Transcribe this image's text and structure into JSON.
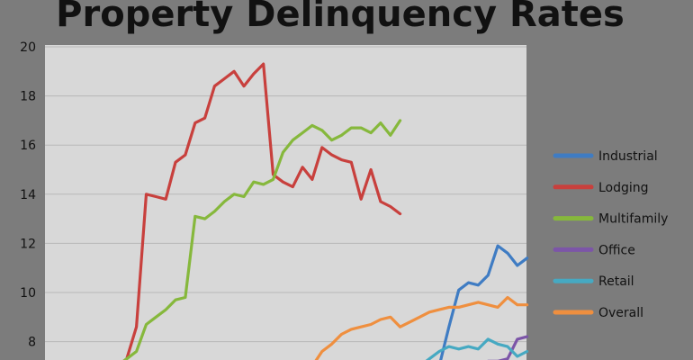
{
  "chart_data": {
    "type": "line",
    "title": "Property Delinquency Rates",
    "xlabel": "",
    "ylabel": "",
    "ylim": [
      7,
      20
    ],
    "yticks": [
      8,
      10,
      12,
      14,
      16,
      18,
      20
    ],
    "grid": true,
    "legend_position": "right",
    "x": [
      1,
      2,
      3,
      4,
      5,
      6,
      7,
      8,
      9,
      10,
      11,
      12,
      13,
      14,
      15,
      16,
      17,
      18,
      19,
      20,
      21,
      22,
      23,
      24,
      25,
      26,
      27,
      28,
      29,
      30,
      31,
      32,
      33,
      34,
      35,
      36,
      37,
      38,
      39,
      40,
      41,
      42,
      43,
      44,
      45,
      46,
      47,
      48,
      49,
      50
    ],
    "series": [
      {
        "name": "Industrial",
        "color": "#3f7cc3",
        "values": [
          null,
          null,
          null,
          null,
          null,
          null,
          null,
          null,
          null,
          null,
          null,
          null,
          null,
          null,
          null,
          null,
          null,
          null,
          null,
          null,
          null,
          null,
          null,
          null,
          null,
          null,
          null,
          null,
          null,
          null,
          null,
          null,
          null,
          null,
          null,
          null,
          null,
          null,
          null,
          null,
          7.0,
          8.6,
          10.1,
          10.4,
          10.3,
          10.7,
          11.9,
          11.6,
          11.1,
          11.4
        ]
      },
      {
        "name": "Lodging",
        "color": "#c8403d",
        "values": [
          7.0,
          7.0,
          7.0,
          7.0,
          7.0,
          7.0,
          7.0,
          7.0,
          7.3,
          8.6,
          14.0,
          13.9,
          13.8,
          15.3,
          15.6,
          16.9,
          17.1,
          18.4,
          18.7,
          19.0,
          18.4,
          18.9,
          19.3,
          14.8,
          14.5,
          14.3,
          15.1,
          14.6,
          15.9,
          15.6,
          15.4,
          15.3,
          13.8,
          15.0,
          13.7,
          13.5,
          13.2,
          null,
          null,
          null,
          null,
          null,
          null,
          null,
          null,
          null,
          null,
          null,
          null,
          null
        ]
      },
      {
        "name": "Multifamily",
        "color": "#86b83c",
        "values": [
          7.0,
          7.0,
          7.0,
          7.0,
          7.0,
          7.0,
          7.0,
          7.0,
          7.3,
          7.6,
          8.7,
          9.0,
          9.3,
          9.7,
          9.8,
          13.1,
          13.0,
          13.3,
          13.7,
          14.0,
          13.9,
          14.5,
          14.4,
          14.6,
          15.7,
          16.2,
          16.5,
          16.8,
          16.6,
          16.2,
          16.4,
          16.7,
          16.7,
          16.5,
          16.9,
          16.4,
          17.0,
          null,
          null,
          null,
          null,
          null,
          null,
          null,
          null,
          null,
          null,
          null,
          null,
          null
        ]
      },
      {
        "name": "Office",
        "color": "#7c55a8",
        "values": [
          null,
          null,
          null,
          null,
          null,
          null,
          null,
          null,
          null,
          null,
          null,
          null,
          null,
          null,
          null,
          null,
          null,
          null,
          null,
          null,
          null,
          null,
          null,
          null,
          null,
          null,
          null,
          null,
          null,
          null,
          null,
          null,
          null,
          null,
          null,
          null,
          null,
          null,
          null,
          null,
          null,
          null,
          null,
          7.0,
          7.1,
          7.2,
          7.2,
          7.3,
          8.1,
          8.2
        ]
      },
      {
        "name": "Retail",
        "color": "#46a9c2",
        "values": [
          null,
          null,
          null,
          null,
          null,
          null,
          null,
          null,
          null,
          null,
          null,
          null,
          null,
          null,
          null,
          null,
          null,
          null,
          null,
          null,
          null,
          null,
          null,
          null,
          null,
          null,
          null,
          null,
          null,
          null,
          null,
          null,
          null,
          null,
          null,
          null,
          null,
          null,
          7.0,
          7.3,
          7.6,
          7.8,
          7.7,
          7.8,
          7.7,
          8.1,
          7.9,
          7.8,
          7.4,
          7.6
        ]
      },
      {
        "name": "Overall",
        "color": "#ef8f3f",
        "values": [
          null,
          null,
          null,
          null,
          null,
          null,
          null,
          null,
          null,
          null,
          null,
          null,
          null,
          null,
          null,
          null,
          null,
          null,
          null,
          null,
          null,
          null,
          null,
          null,
          null,
          null,
          null,
          7.0,
          7.6,
          7.9,
          8.3,
          8.5,
          8.6,
          8.7,
          8.9,
          9.0,
          8.6,
          8.8,
          9.0,
          9.2,
          9.3,
          9.4,
          9.4,
          9.5,
          9.6,
          9.5,
          9.4,
          9.8,
          9.5,
          9.5
        ]
      }
    ]
  }
}
